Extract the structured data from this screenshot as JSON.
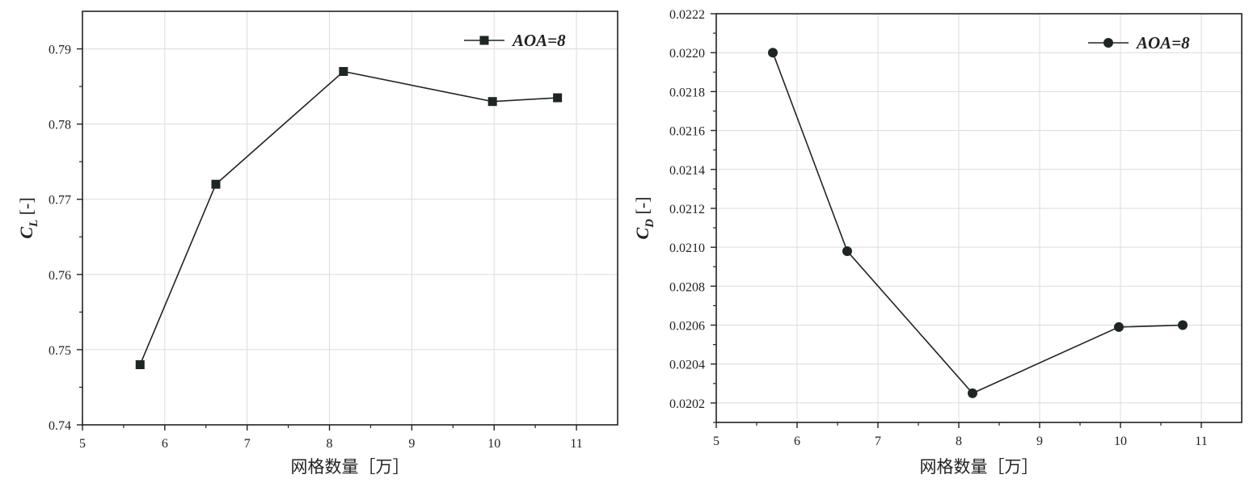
{
  "chart_data": [
    {
      "type": "line",
      "x": [
        5.7,
        6.62,
        8.17,
        9.98,
        10.77
      ],
      "series": [
        {
          "name": "AOA=8",
          "marker": "square",
          "values": [
            0.748,
            0.772,
            0.787,
            0.783,
            0.7835
          ]
        }
      ],
      "xlabel": "网格数量［万］",
      "ylabel": {
        "symbol": "C",
        "subscript": "L",
        "unit": " [-]"
      },
      "xlim": [
        5,
        11.5
      ],
      "ylim": [
        0.74,
        0.795
      ],
      "xticks": [
        5,
        6,
        7,
        8,
        9,
        10,
        11
      ],
      "yticks": [
        0.74,
        0.75,
        0.76,
        0.77,
        0.78,
        0.79
      ],
      "ytick_labels": [
        "0.74",
        "0.75",
        "0.76",
        "0.77",
        "0.78",
        "0.79"
      ],
      "grid": true,
      "legend_position": "top-right",
      "color": "#1e2624"
    },
    {
      "type": "line",
      "x": [
        5.7,
        6.62,
        8.17,
        9.98,
        10.77
      ],
      "series": [
        {
          "name": "AOA=8",
          "marker": "circle",
          "values": [
            0.022,
            0.02098,
            0.02025,
            0.02059,
            0.0206
          ]
        }
      ],
      "xlabel": "网格数量［万］",
      "ylabel": {
        "symbol": "C",
        "subscript": "D",
        "unit": " [-]"
      },
      "xlim": [
        5,
        11.5
      ],
      "ylim": [
        0.0201,
        0.0222
      ],
      "xticks": [
        5,
        6,
        7,
        8,
        9,
        10,
        11
      ],
      "yticks": [
        0.0202,
        0.0204,
        0.0206,
        0.0208,
        0.021,
        0.0212,
        0.0214,
        0.0216,
        0.0218,
        0.022,
        0.0222
      ],
      "ytick_labels": [
        "0.0202",
        "0.0204",
        "0.0206",
        "0.0208",
        "0.0210",
        "0.0212",
        "0.0214",
        "0.0216",
        "0.0218",
        "0.0220",
        "0.0222"
      ],
      "grid": true,
      "legend_position": "top-right",
      "color": "#1e2624"
    }
  ]
}
